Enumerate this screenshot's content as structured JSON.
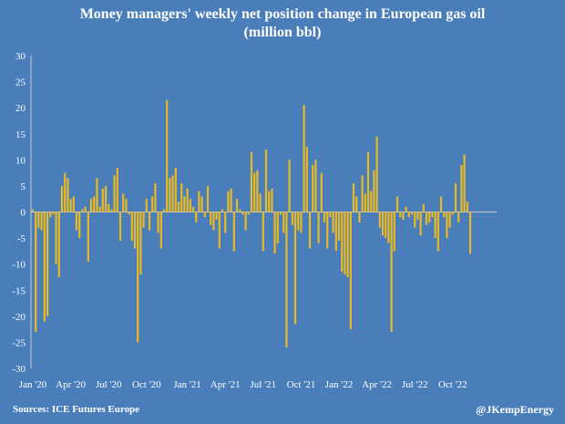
{
  "chart_data": {
    "type": "bar",
    "title": "Money managers' weekly net position change in European gas oil",
    "subtitle": "(million bbl)",
    "ylim": [
      -30,
      30
    ],
    "yticks": [
      30,
      25,
      20,
      15,
      10,
      5,
      0,
      -5,
      -10,
      -15,
      -20,
      -25,
      -30
    ],
    "grid": false,
    "bar_color": "#e8b923",
    "axis_color": "#c8c8c8",
    "xtick_labels": [
      "Jan '20",
      "Apr '20",
      "Jul '20",
      "Oct '20",
      "Jan '21",
      "Apr '21",
      "Jul '21",
      "Oct '21",
      "Jan '22",
      "Apr '22",
      "Jul '22",
      "Oct '22"
    ],
    "xtick_weeks": [
      0,
      13,
      26,
      39,
      53,
      66,
      79,
      92,
      105,
      118,
      131,
      144
    ],
    "values": [
      0.5,
      -23,
      -3,
      -3.5,
      -21,
      -20,
      -1,
      -0.5,
      -10,
      -12.5,
      5,
      7.5,
      6.5,
      2.5,
      3,
      -3.5,
      -5,
      0.5,
      1,
      -9.5,
      2.5,
      3,
      6.5,
      1,
      4.5,
      5,
      1.5,
      0.5,
      7,
      8.5,
      -5.5,
      3.5,
      2.5,
      -0.5,
      -5.5,
      -7,
      -25,
      -12,
      -3,
      2.5,
      -3.5,
      3,
      5.5,
      -4,
      -7,
      0.5,
      21.5,
      6.5,
      7,
      8.5,
      2,
      5.5,
      3,
      4.5,
      2.5,
      1,
      -2,
      4,
      3,
      -1,
      5,
      -2.5,
      -3.5,
      -1.5,
      -7,
      0.5,
      -4,
      4,
      4.5,
      -7.5,
      2.5,
      0.5,
      -0.5,
      -3.5,
      -0.5,
      11.5,
      7.5,
      8,
      3.5,
      -7.5,
      12,
      4,
      4.5,
      -8,
      -6,
      -0.5,
      -4,
      -26,
      10,
      -2.5,
      -21.5,
      -3.5,
      -4,
      20.5,
      12.5,
      -7,
      9,
      10,
      -6,
      7.5,
      -2,
      -7,
      -1,
      -4,
      -7.5,
      -5.5,
      -11.5,
      -12,
      -12.5,
      -22.5,
      5.5,
      3,
      -2,
      7,
      3.5,
      11.5,
      4,
      8,
      14.5,
      -3,
      -4.5,
      -5,
      -6,
      -23,
      -7.5,
      3,
      -1,
      -1.5,
      1,
      -1,
      -0.5,
      -3,
      -1.5,
      -4.5,
      1.5,
      -2.5,
      -2,
      -1,
      -5,
      -7.5,
      3,
      -1,
      -5,
      -3,
      -0.5,
      5.5,
      -2,
      9,
      11,
      2,
      -8
    ]
  },
  "footer": {
    "source": "Sources: ICE Futures Europe",
    "credit": "@JKempEnergy"
  }
}
